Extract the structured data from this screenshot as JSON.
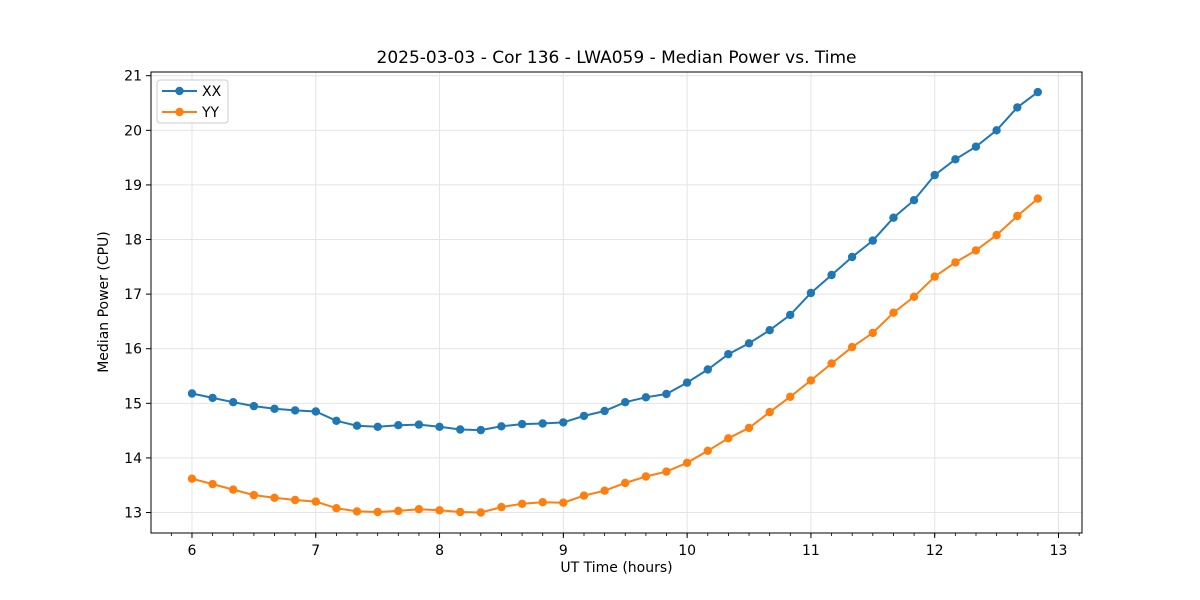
{
  "chart_data": {
    "type": "line",
    "title": "2025-03-03 - Cor 136 - LWA059 - Median Power vs. Time",
    "xlabel": "UT Time (hours)",
    "ylabel": "Median Power (CPU)",
    "xlim": [
      5.669,
      13.19
    ],
    "ylim": [
      12.625,
      21.068
    ],
    "x_major_ticks": [
      6,
      7,
      8,
      9,
      10,
      11,
      12,
      13
    ],
    "x_minor_tick_step_hours": 0.16667,
    "y_major_ticks": [
      13,
      14,
      15,
      16,
      17,
      18,
      19,
      20,
      21
    ],
    "grid": true,
    "legend_position": "upper-left",
    "x": [
      6.0,
      6.167,
      6.333,
      6.5,
      6.667,
      6.833,
      7.0,
      7.167,
      7.333,
      7.5,
      7.667,
      7.833,
      8.0,
      8.167,
      8.333,
      8.5,
      8.667,
      8.833,
      9.0,
      9.167,
      9.333,
      9.5,
      9.667,
      9.833,
      10.0,
      10.167,
      10.333,
      10.5,
      10.667,
      10.833,
      11.0,
      11.167,
      11.333,
      11.5,
      11.667,
      11.833,
      12.0,
      12.167,
      12.333,
      12.5,
      12.667,
      12.833
    ],
    "series": [
      {
        "name": "XX",
        "color": "#1f77b4",
        "values": [
          15.18,
          15.1,
          15.02,
          14.95,
          14.9,
          14.87,
          14.85,
          14.68,
          14.59,
          14.57,
          14.6,
          14.61,
          14.57,
          14.52,
          14.51,
          14.58,
          14.62,
          14.63,
          14.65,
          14.77,
          14.86,
          15.02,
          15.11,
          15.17,
          15.38,
          15.62,
          15.9,
          16.1,
          16.34,
          16.62,
          17.02,
          17.35,
          17.68,
          17.98,
          18.4,
          18.72,
          19.18,
          19.47,
          19.7,
          20.0,
          20.42,
          20.7
        ]
      },
      {
        "name": "YY",
        "color": "#ff7f0e",
        "values": [
          13.62,
          13.52,
          13.42,
          13.32,
          13.27,
          13.23,
          13.2,
          13.08,
          13.02,
          13.01,
          13.03,
          13.06,
          13.04,
          13.01,
          13.0,
          13.1,
          13.16,
          13.19,
          13.18,
          13.31,
          13.4,
          13.54,
          13.66,
          13.75,
          13.91,
          14.13,
          14.36,
          14.55,
          14.84,
          15.12,
          15.42,
          15.73,
          16.03,
          16.29,
          16.66,
          16.95,
          17.32,
          17.58,
          17.8,
          18.08,
          18.43,
          18.75
        ]
      }
    ]
  },
  "style": {
    "grid_color": "#e4e4e4",
    "spine_color": "#000000",
    "tick_color": "#000000",
    "legend_border_color": "#cccccc",
    "legend_background": "#ffffff"
  }
}
